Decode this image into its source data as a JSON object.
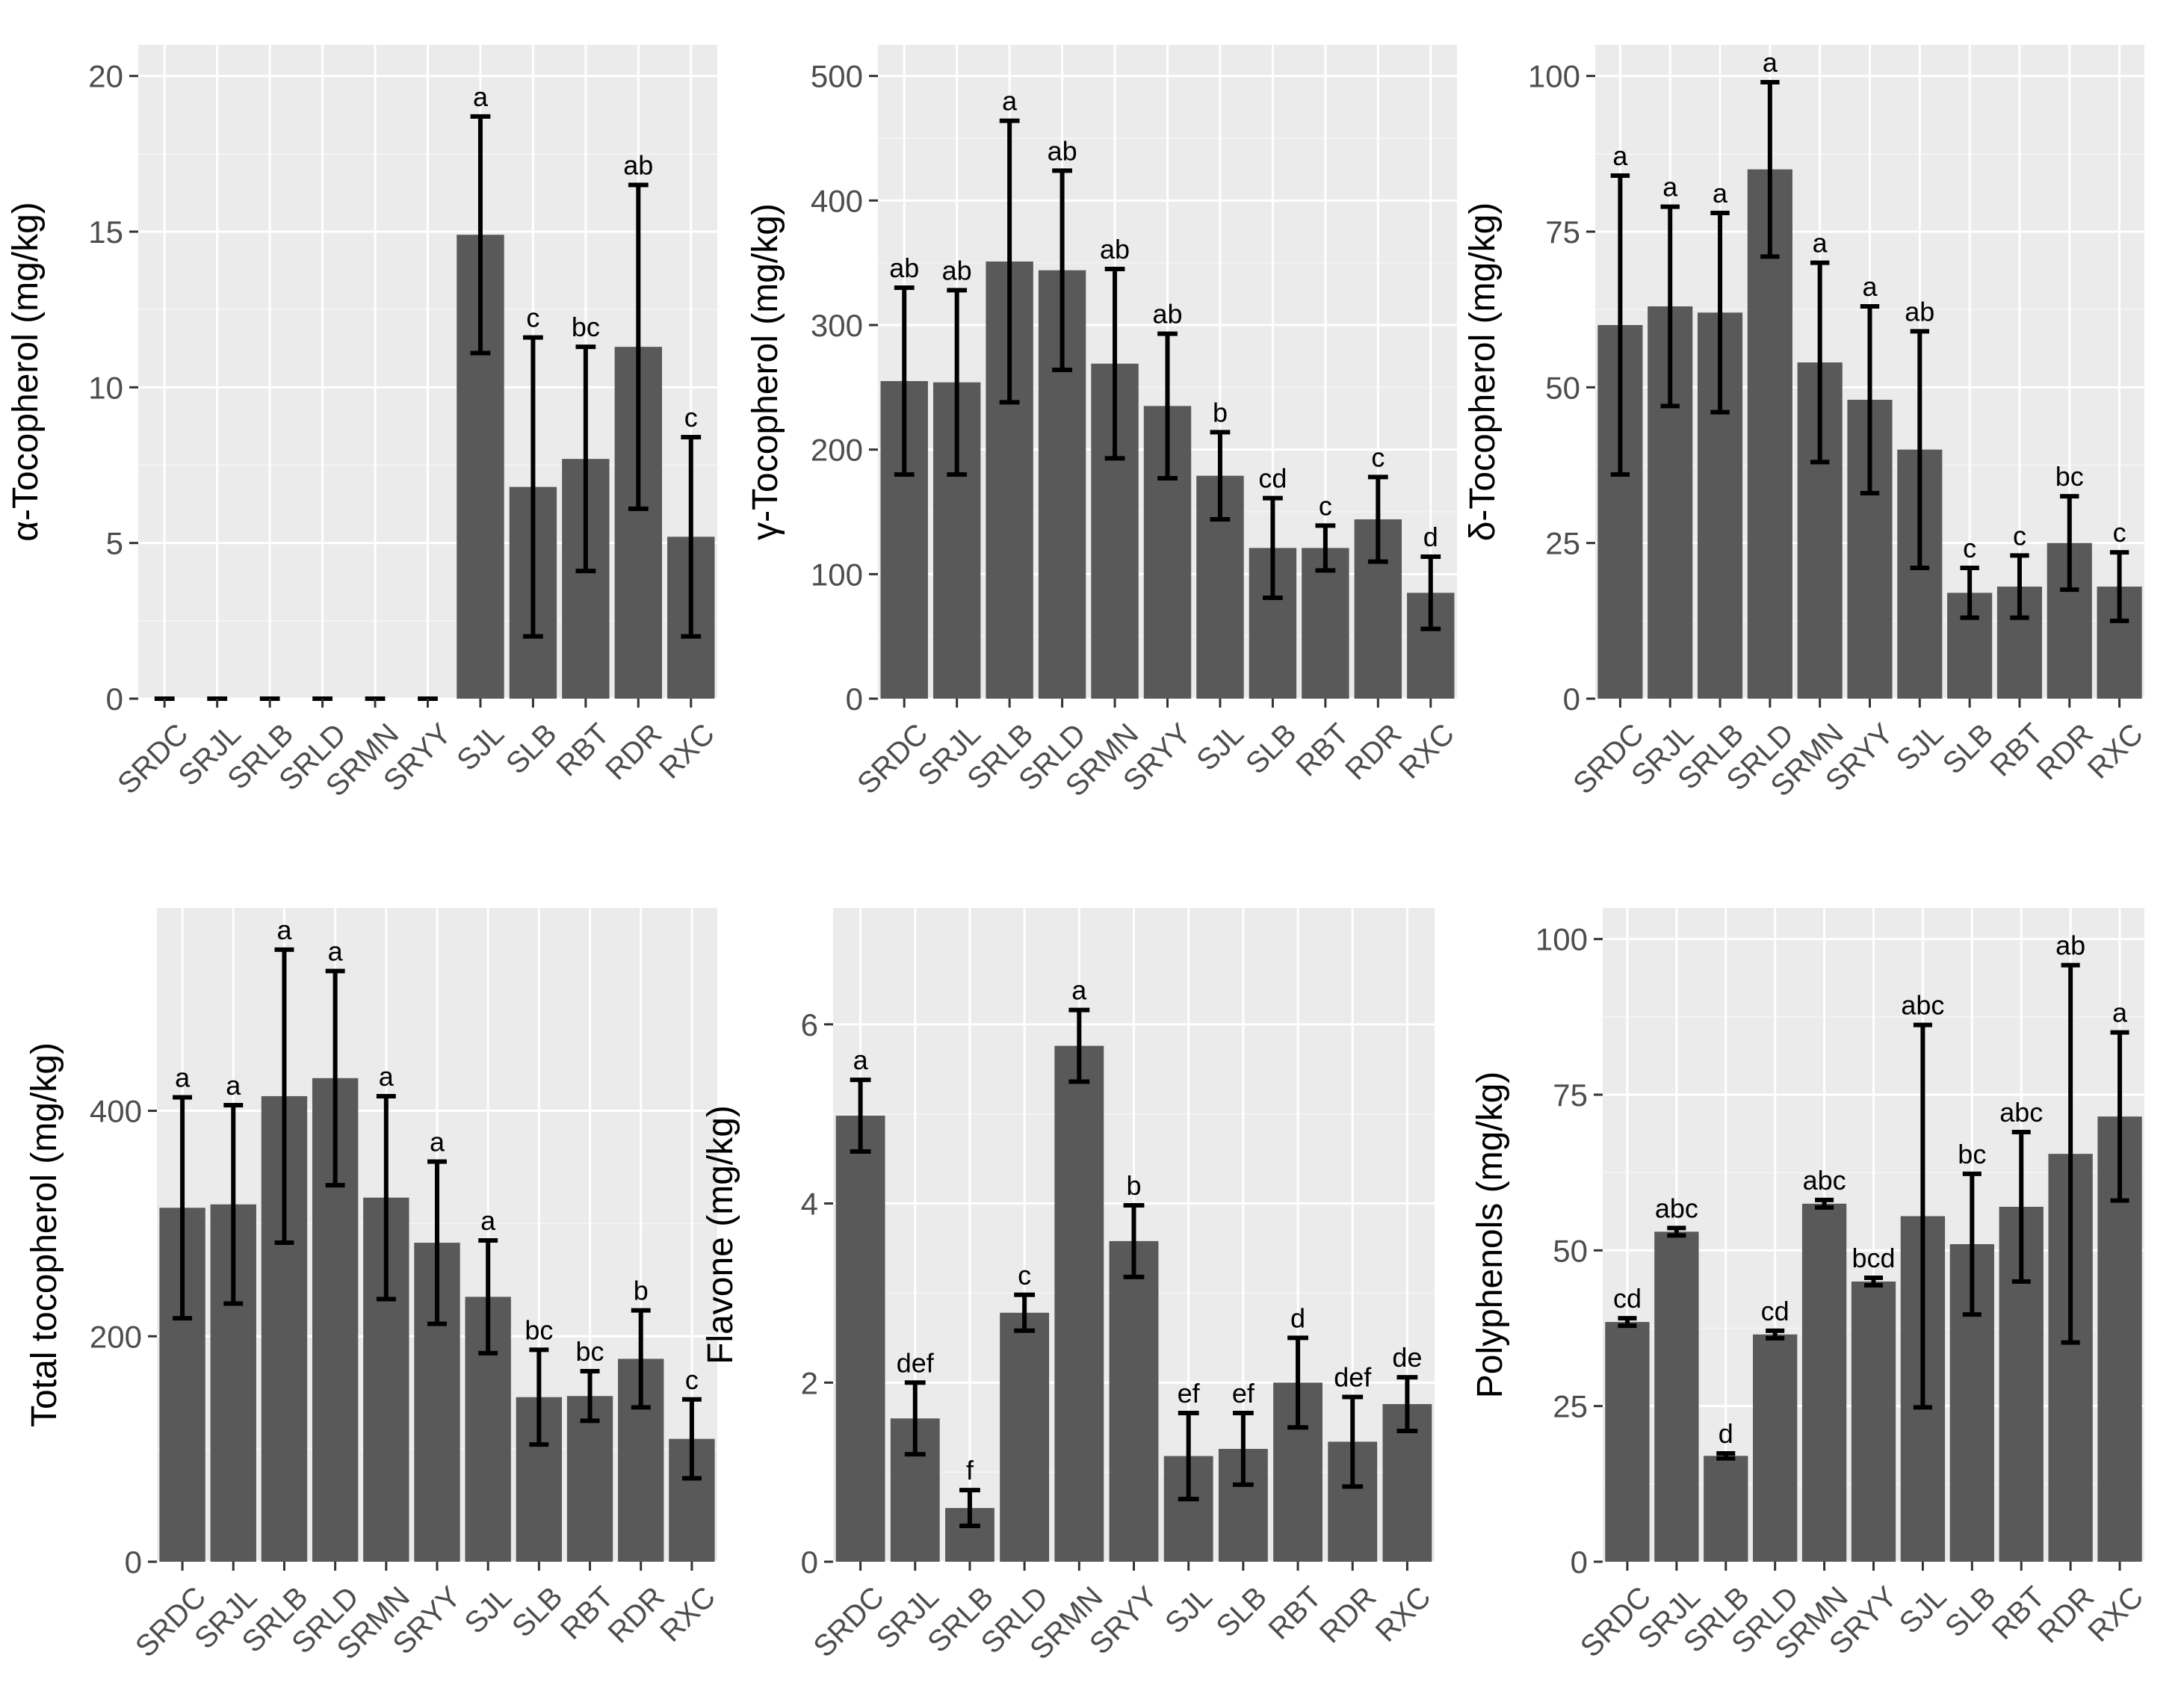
{
  "chart_data": [
    {
      "type": "bar",
      "title": "",
      "xlabel": "",
      "ylabel": "α-Tocopherol (mg/kg)",
      "ylim": [
        0,
        21
      ],
      "yticks": [
        0,
        5,
        10,
        15,
        20
      ],
      "categories": [
        "SRDC",
        "SRJL",
        "SRLB",
        "SRLD",
        "SRMN",
        "SRYY",
        "SJL",
        "SLB",
        "RBT",
        "RDR",
        "RXC"
      ],
      "values": [
        0,
        0,
        0,
        0,
        0,
        0,
        14.9,
        6.8,
        7.7,
        11.3,
        5.2
      ],
      "errors": [
        0,
        0,
        0,
        0,
        0,
        0,
        3.8,
        4.8,
        3.6,
        5.2,
        3.2
      ],
      "letters": [
        "",
        "",
        "",
        "",
        "",
        "",
        "a",
        "c",
        "bc",
        "ab",
        "c"
      ]
    },
    {
      "type": "bar",
      "title": "",
      "xlabel": "",
      "ylabel": "γ-Tocopherol (mg/kg)",
      "ylim": [
        0,
        525
      ],
      "yticks": [
        0,
        100,
        200,
        300,
        400,
        500
      ],
      "categories": [
        "SRDC",
        "SRJL",
        "SRLB",
        "SRLD",
        "SRMN",
        "SRYY",
        "SJL",
        "SLB",
        "RBT",
        "RDR",
        "RXC"
      ],
      "values": [
        255,
        254,
        351,
        344,
        269,
        235,
        179,
        121,
        121,
        144,
        85
      ],
      "errors": [
        75,
        74,
        113,
        80,
        76,
        58,
        35,
        40,
        18,
        34,
        29
      ],
      "letters": [
        "ab",
        "ab",
        "a",
        "ab",
        "ab",
        "ab",
        "b",
        "cd",
        "c",
        "c",
        "d"
      ]
    },
    {
      "type": "bar",
      "title": "",
      "xlabel": "",
      "ylabel": "δ-Tocopherol (mg/kg)",
      "ylim": [
        0,
        105
      ],
      "yticks": [
        0,
        25,
        50,
        75,
        100
      ],
      "categories": [
        "SRDC",
        "SRJL",
        "SRLB",
        "SRLD",
        "SRMN",
        "SRYY",
        "SJL",
        "SLB",
        "RBT",
        "RDR",
        "RXC"
      ],
      "values": [
        60,
        63,
        62,
        85,
        54,
        48,
        40,
        17,
        18,
        25,
        18
      ],
      "errors": [
        24,
        16,
        16,
        14,
        16,
        15,
        19,
        4,
        5,
        7.5,
        5.5
      ],
      "letters": [
        "a",
        "a",
        "a",
        "a",
        "a",
        "a",
        "ab",
        "c",
        "c",
        "bc",
        "c"
      ]
    },
    {
      "type": "bar",
      "title": "",
      "xlabel": "",
      "ylabel": "Total tocopherol (mg/kg)",
      "ylim": [
        0,
        580
      ],
      "yticks": [
        0,
        200,
        400
      ],
      "categories": [
        "SRDC",
        "SRJL",
        "SRLB",
        "SRLD",
        "SRMN",
        "SRYY",
        "SJL",
        "SLB",
        "RBT",
        "RDR",
        "RXC"
      ],
      "values": [
        314,
        317,
        413,
        429,
        323,
        283,
        235,
        146,
        147,
        180,
        109
      ],
      "errors": [
        98,
        88,
        130,
        95,
        90,
        72,
        50,
        42,
        22,
        43,
        35
      ],
      "letters": [
        "a",
        "a",
        "a",
        "a",
        "a",
        "a",
        "a",
        "bc",
        "bc",
        "b",
        "c"
      ]
    },
    {
      "type": "bar",
      "title": "",
      "xlabel": "",
      "ylabel": "Flavone (mg/kg)",
      "ylim": [
        0,
        7.3
      ],
      "yticks": [
        0,
        2,
        4,
        6
      ],
      "categories": [
        "SRDC",
        "SRJL",
        "SRLB",
        "SRLD",
        "SRMN",
        "SRYY",
        "SJL",
        "SLB",
        "RBT",
        "RDR",
        "RXC"
      ],
      "values": [
        4.98,
        1.6,
        0.6,
        2.78,
        5.76,
        3.58,
        1.18,
        1.26,
        2.0,
        1.34,
        1.76
      ],
      "errors": [
        0.4,
        0.4,
        0.2,
        0.2,
        0.4,
        0.4,
        0.48,
        0.4,
        0.5,
        0.5,
        0.3
      ],
      "letters": [
        "a",
        "def",
        "f",
        "c",
        "a",
        "b",
        "ef",
        "ef",
        "d",
        "def",
        "de"
      ]
    },
    {
      "type": "bar",
      "title": "",
      "xlabel": "",
      "ylabel": "Polyphenols (mg/kg)",
      "ylim": [
        0,
        105
      ],
      "yticks": [
        0,
        25,
        50,
        75,
        100
      ],
      "categories": [
        "SRDC",
        "SRJL",
        "SRLB",
        "SRLD",
        "SRMN",
        "SRYY",
        "SJL",
        "SLB",
        "RBT",
        "RDR",
        "RXC"
      ],
      "values": [
        38.5,
        53,
        17,
        36.5,
        57.5,
        45,
        55.5,
        51,
        57,
        65.5,
        71.5
      ],
      "errors": [
        0.6,
        0.6,
        0.4,
        0.6,
        0.6,
        0.6,
        30.7,
        11.3,
        12,
        30.3,
        13.5
      ],
      "letters": [
        "cd",
        "abc",
        "d",
        "cd",
        "abc",
        "bcd",
        "abc",
        "bc",
        "abc",
        "ab",
        "a"
      ]
    }
  ]
}
